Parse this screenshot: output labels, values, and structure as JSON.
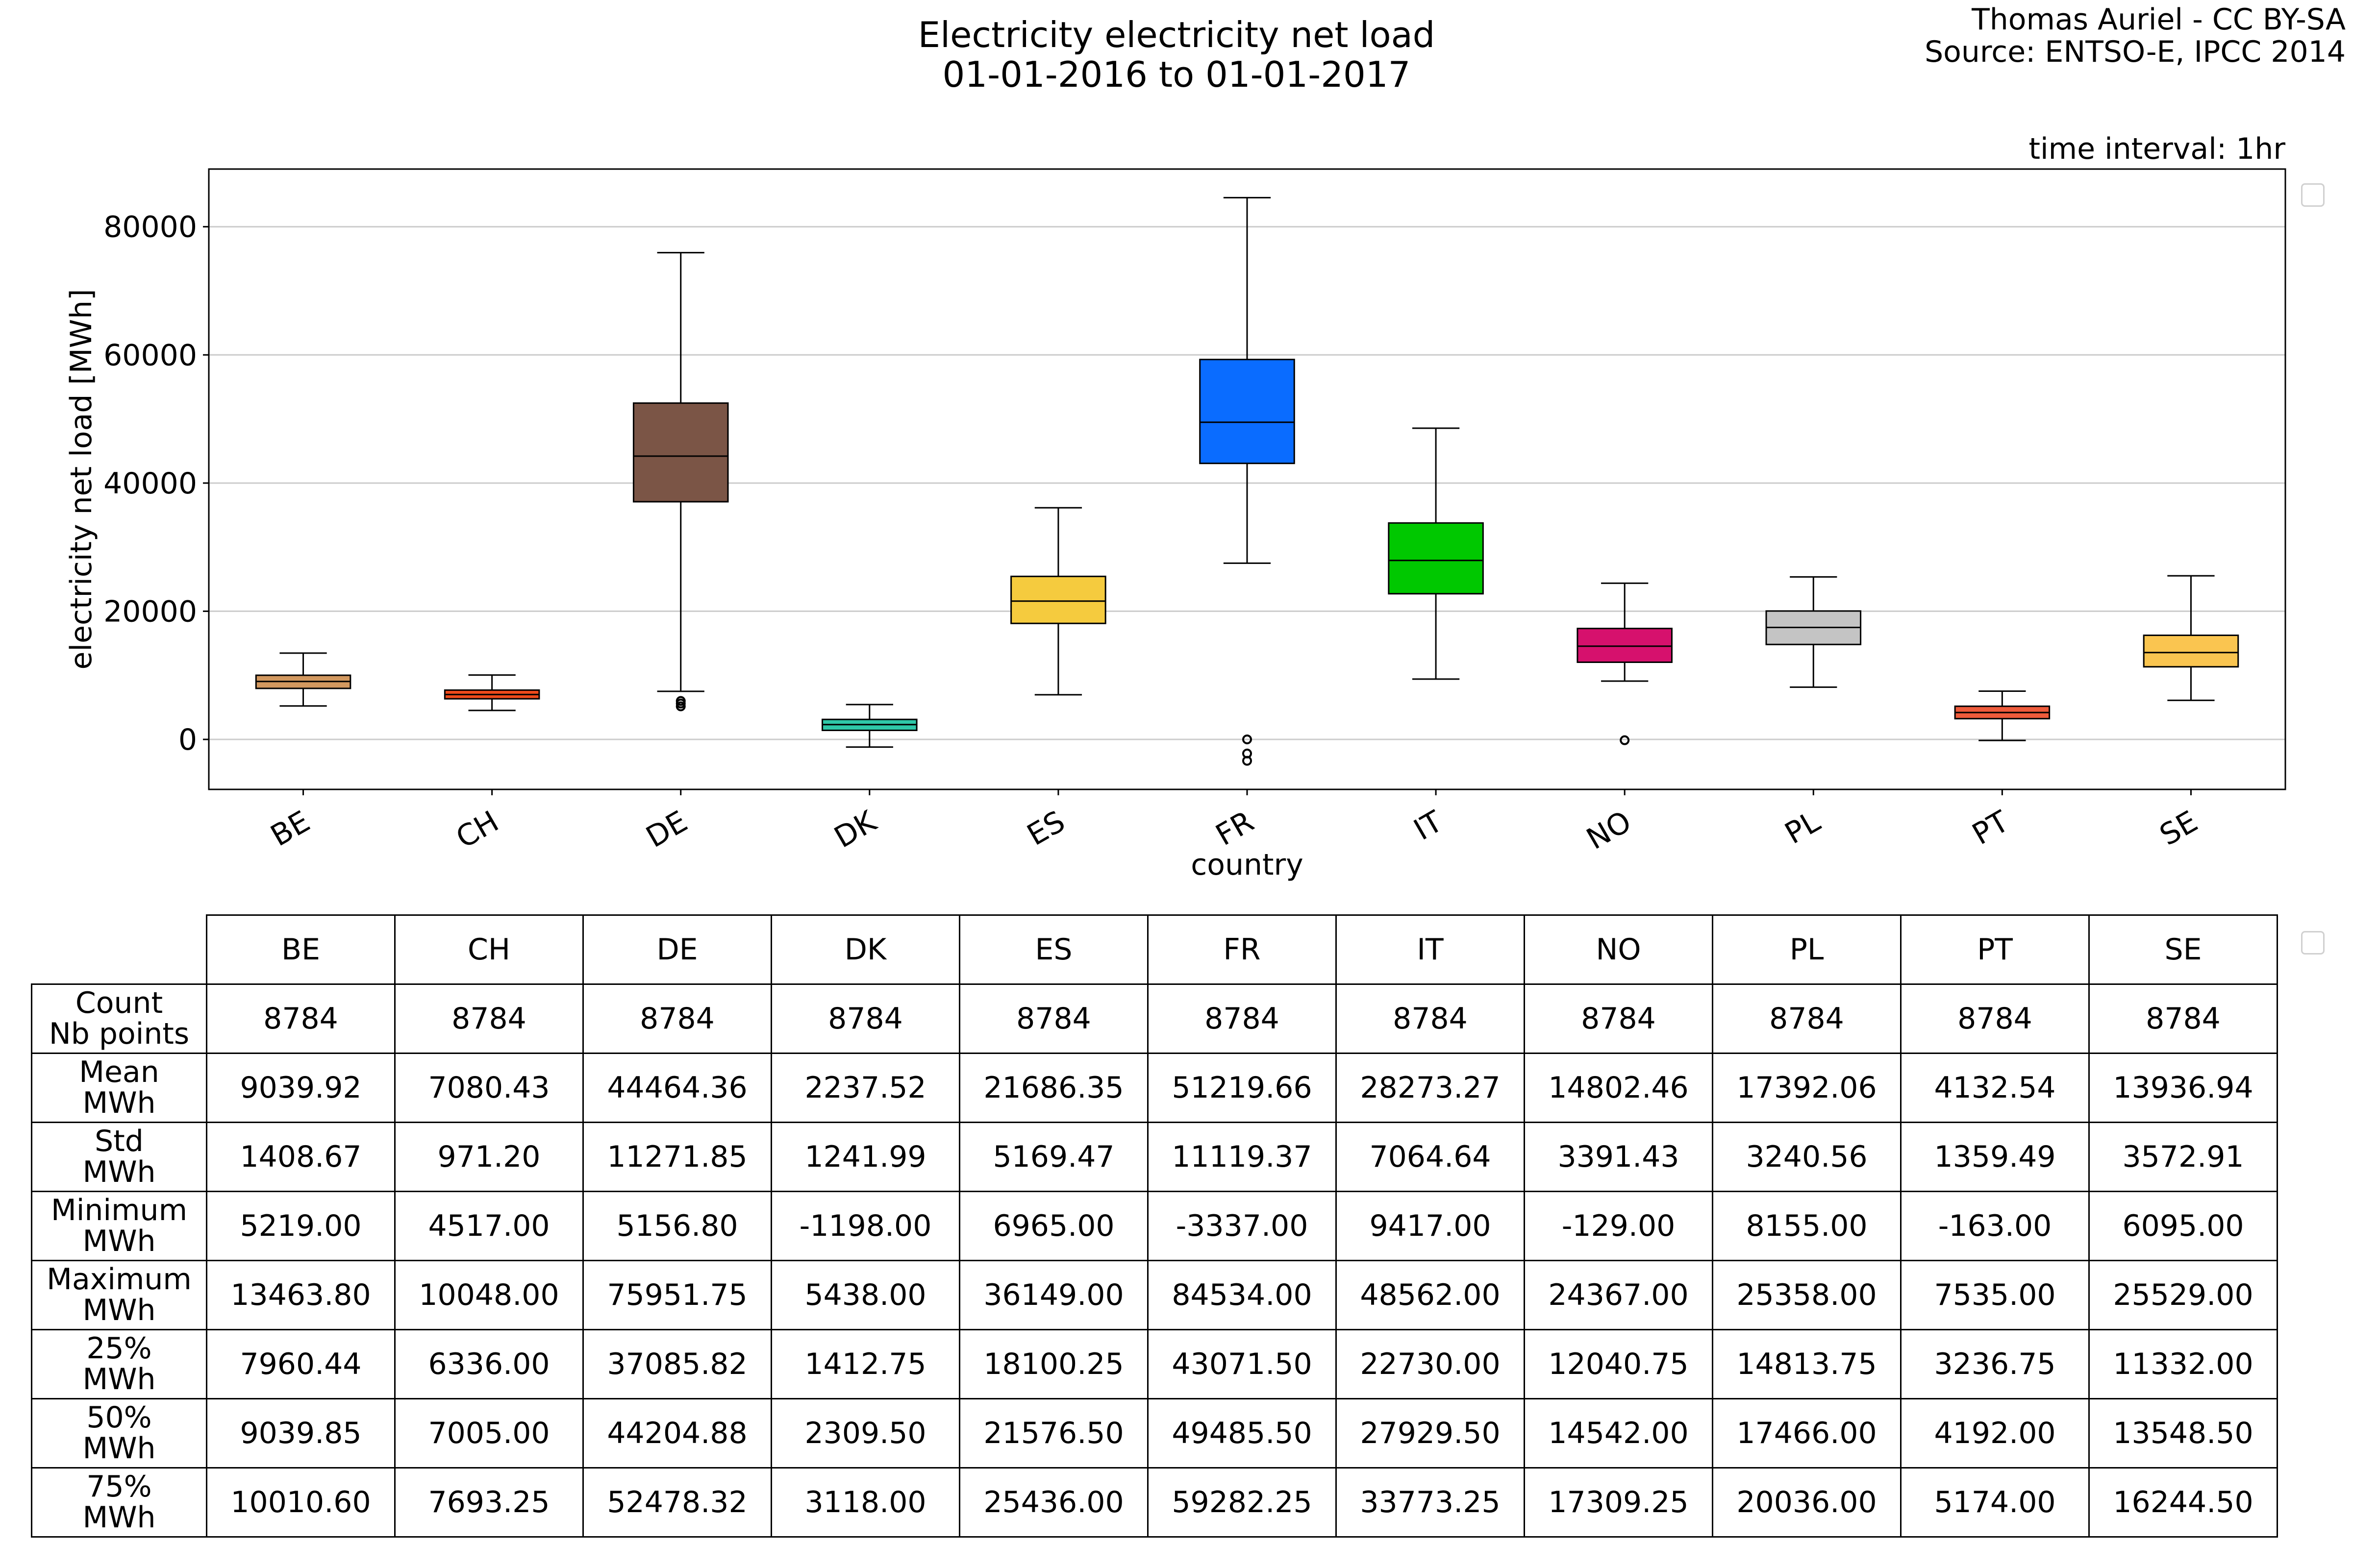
{
  "title_line1": "Electricity electricity net load",
  "title_line2": "01-01-2016 to 01-01-2017",
  "credit_line1": "Thomas Auriel - CC BY-SA",
  "credit_line2": "Source: ENTSO-E, IPCC 2014",
  "interval_label": "time interval: 1hr",
  "chart_data": {
    "type": "box",
    "xlabel": "country",
    "ylabel": "electricity net load [MWh]",
    "ylim": [
      -7800,
      89000
    ],
    "yticks": [
      0,
      20000,
      40000,
      60000,
      80000
    ],
    "grid": "horizontal",
    "categories": [
      "BE",
      "CH",
      "DE",
      "DK",
      "ES",
      "FR",
      "IT",
      "NO",
      "PL",
      "PT",
      "SE"
    ],
    "colors": [
      "#d2985f",
      "#ee4a1b",
      "#7b5546",
      "#2fc7a8",
      "#f5cb3e",
      "#0a6cff",
      "#00c800",
      "#d6116d",
      "#c4c4c4",
      "#ee5b3b",
      "#fac550"
    ],
    "boxes": [
      {
        "q1": 7960.44,
        "median": 9039.85,
        "q3": 10010.6,
        "whislo": 5219.0,
        "whishi": 13463.8,
        "fliers": []
      },
      {
        "q1": 6336.0,
        "median": 7005.0,
        "q3": 7693.25,
        "whislo": 4517.0,
        "whishi": 10048.0,
        "fliers": []
      },
      {
        "q1": 37085.82,
        "median": 44204.88,
        "q3": 52478.32,
        "whislo": 7500,
        "whishi": 75951.75,
        "fliers": [
          5156.8,
          5600,
          6000
        ]
      },
      {
        "q1": 1412.75,
        "median": 2309.5,
        "q3": 3118.0,
        "whislo": -1198.0,
        "whishi": 5438.0,
        "fliers": []
      },
      {
        "q1": 18100.25,
        "median": 21576.5,
        "q3": 25436.0,
        "whislo": 6965.0,
        "whishi": 36149.0,
        "fliers": []
      },
      {
        "q1": 43071.5,
        "median": 49485.5,
        "q3": 59282.25,
        "whislo": 27500,
        "whishi": 84534.0,
        "fliers": [
          0,
          -2200,
          -3337.0
        ]
      },
      {
        "q1": 22730.0,
        "median": 27929.5,
        "q3": 33773.25,
        "whislo": 9417.0,
        "whishi": 48562.0,
        "fliers": []
      },
      {
        "q1": 12040.75,
        "median": 14542.0,
        "q3": 17309.25,
        "whislo": 9100,
        "whishi": 24367.0,
        "fliers": [
          -129.0
        ]
      },
      {
        "q1": 14813.75,
        "median": 17466.0,
        "q3": 20036.0,
        "whislo": 8155.0,
        "whishi": 25358.0,
        "fliers": []
      },
      {
        "q1": 3236.75,
        "median": 4192.0,
        "q3": 5174.0,
        "whislo": -163.0,
        "whishi": 7535.0,
        "fliers": []
      },
      {
        "q1": 11332.0,
        "median": 13548.5,
        "q3": 16244.5,
        "whislo": 6095.0,
        "whishi": 25529.0,
        "fliers": []
      }
    ]
  },
  "table": {
    "columns": [
      "BE",
      "CH",
      "DE",
      "DK",
      "ES",
      "FR",
      "IT",
      "NO",
      "PL",
      "PT",
      "SE"
    ],
    "rows": [
      {
        "label1": "Count",
        "label2": "Nb points",
        "values": [
          "8784",
          "8784",
          "8784",
          "8784",
          "8784",
          "8784",
          "8784",
          "8784",
          "8784",
          "8784",
          "8784"
        ]
      },
      {
        "label1": "Mean",
        "label2": "MWh",
        "values": [
          "9039.92",
          "7080.43",
          "44464.36",
          "2237.52",
          "21686.35",
          "51219.66",
          "28273.27",
          "14802.46",
          "17392.06",
          "4132.54",
          "13936.94"
        ]
      },
      {
        "label1": "Std",
        "label2": "MWh",
        "values": [
          "1408.67",
          "971.20",
          "11271.85",
          "1241.99",
          "5169.47",
          "11119.37",
          "7064.64",
          "3391.43",
          "3240.56",
          "1359.49",
          "3572.91"
        ]
      },
      {
        "label1": "Minimum",
        "label2": "MWh",
        "values": [
          "5219.00",
          "4517.00",
          "5156.80",
          "-1198.00",
          "6965.00",
          "-3337.00",
          "9417.00",
          "-129.00",
          "8155.00",
          "-163.00",
          "6095.00"
        ]
      },
      {
        "label1": "Maximum",
        "label2": "MWh",
        "values": [
          "13463.80",
          "10048.00",
          "75951.75",
          "5438.00",
          "36149.00",
          "84534.00",
          "48562.00",
          "24367.00",
          "25358.00",
          "7535.00",
          "25529.00"
        ]
      },
      {
        "label1": "25%",
        "label2": "MWh",
        "values": [
          "7960.44",
          "6336.00",
          "37085.82",
          "1412.75",
          "18100.25",
          "43071.50",
          "22730.00",
          "12040.75",
          "14813.75",
          "3236.75",
          "11332.00"
        ]
      },
      {
        "label1": "50%",
        "label2": "MWh",
        "values": [
          "9039.85",
          "7005.00",
          "44204.88",
          "2309.50",
          "21576.50",
          "49485.50",
          "27929.50",
          "14542.00",
          "17466.00",
          "4192.00",
          "13548.50"
        ]
      },
      {
        "label1": "75%",
        "label2": "MWh",
        "values": [
          "10010.60",
          "7693.25",
          "52478.32",
          "3118.00",
          "25436.00",
          "59282.25",
          "33773.25",
          "17309.25",
          "20036.00",
          "5174.00",
          "16244.50"
        ]
      }
    ]
  }
}
